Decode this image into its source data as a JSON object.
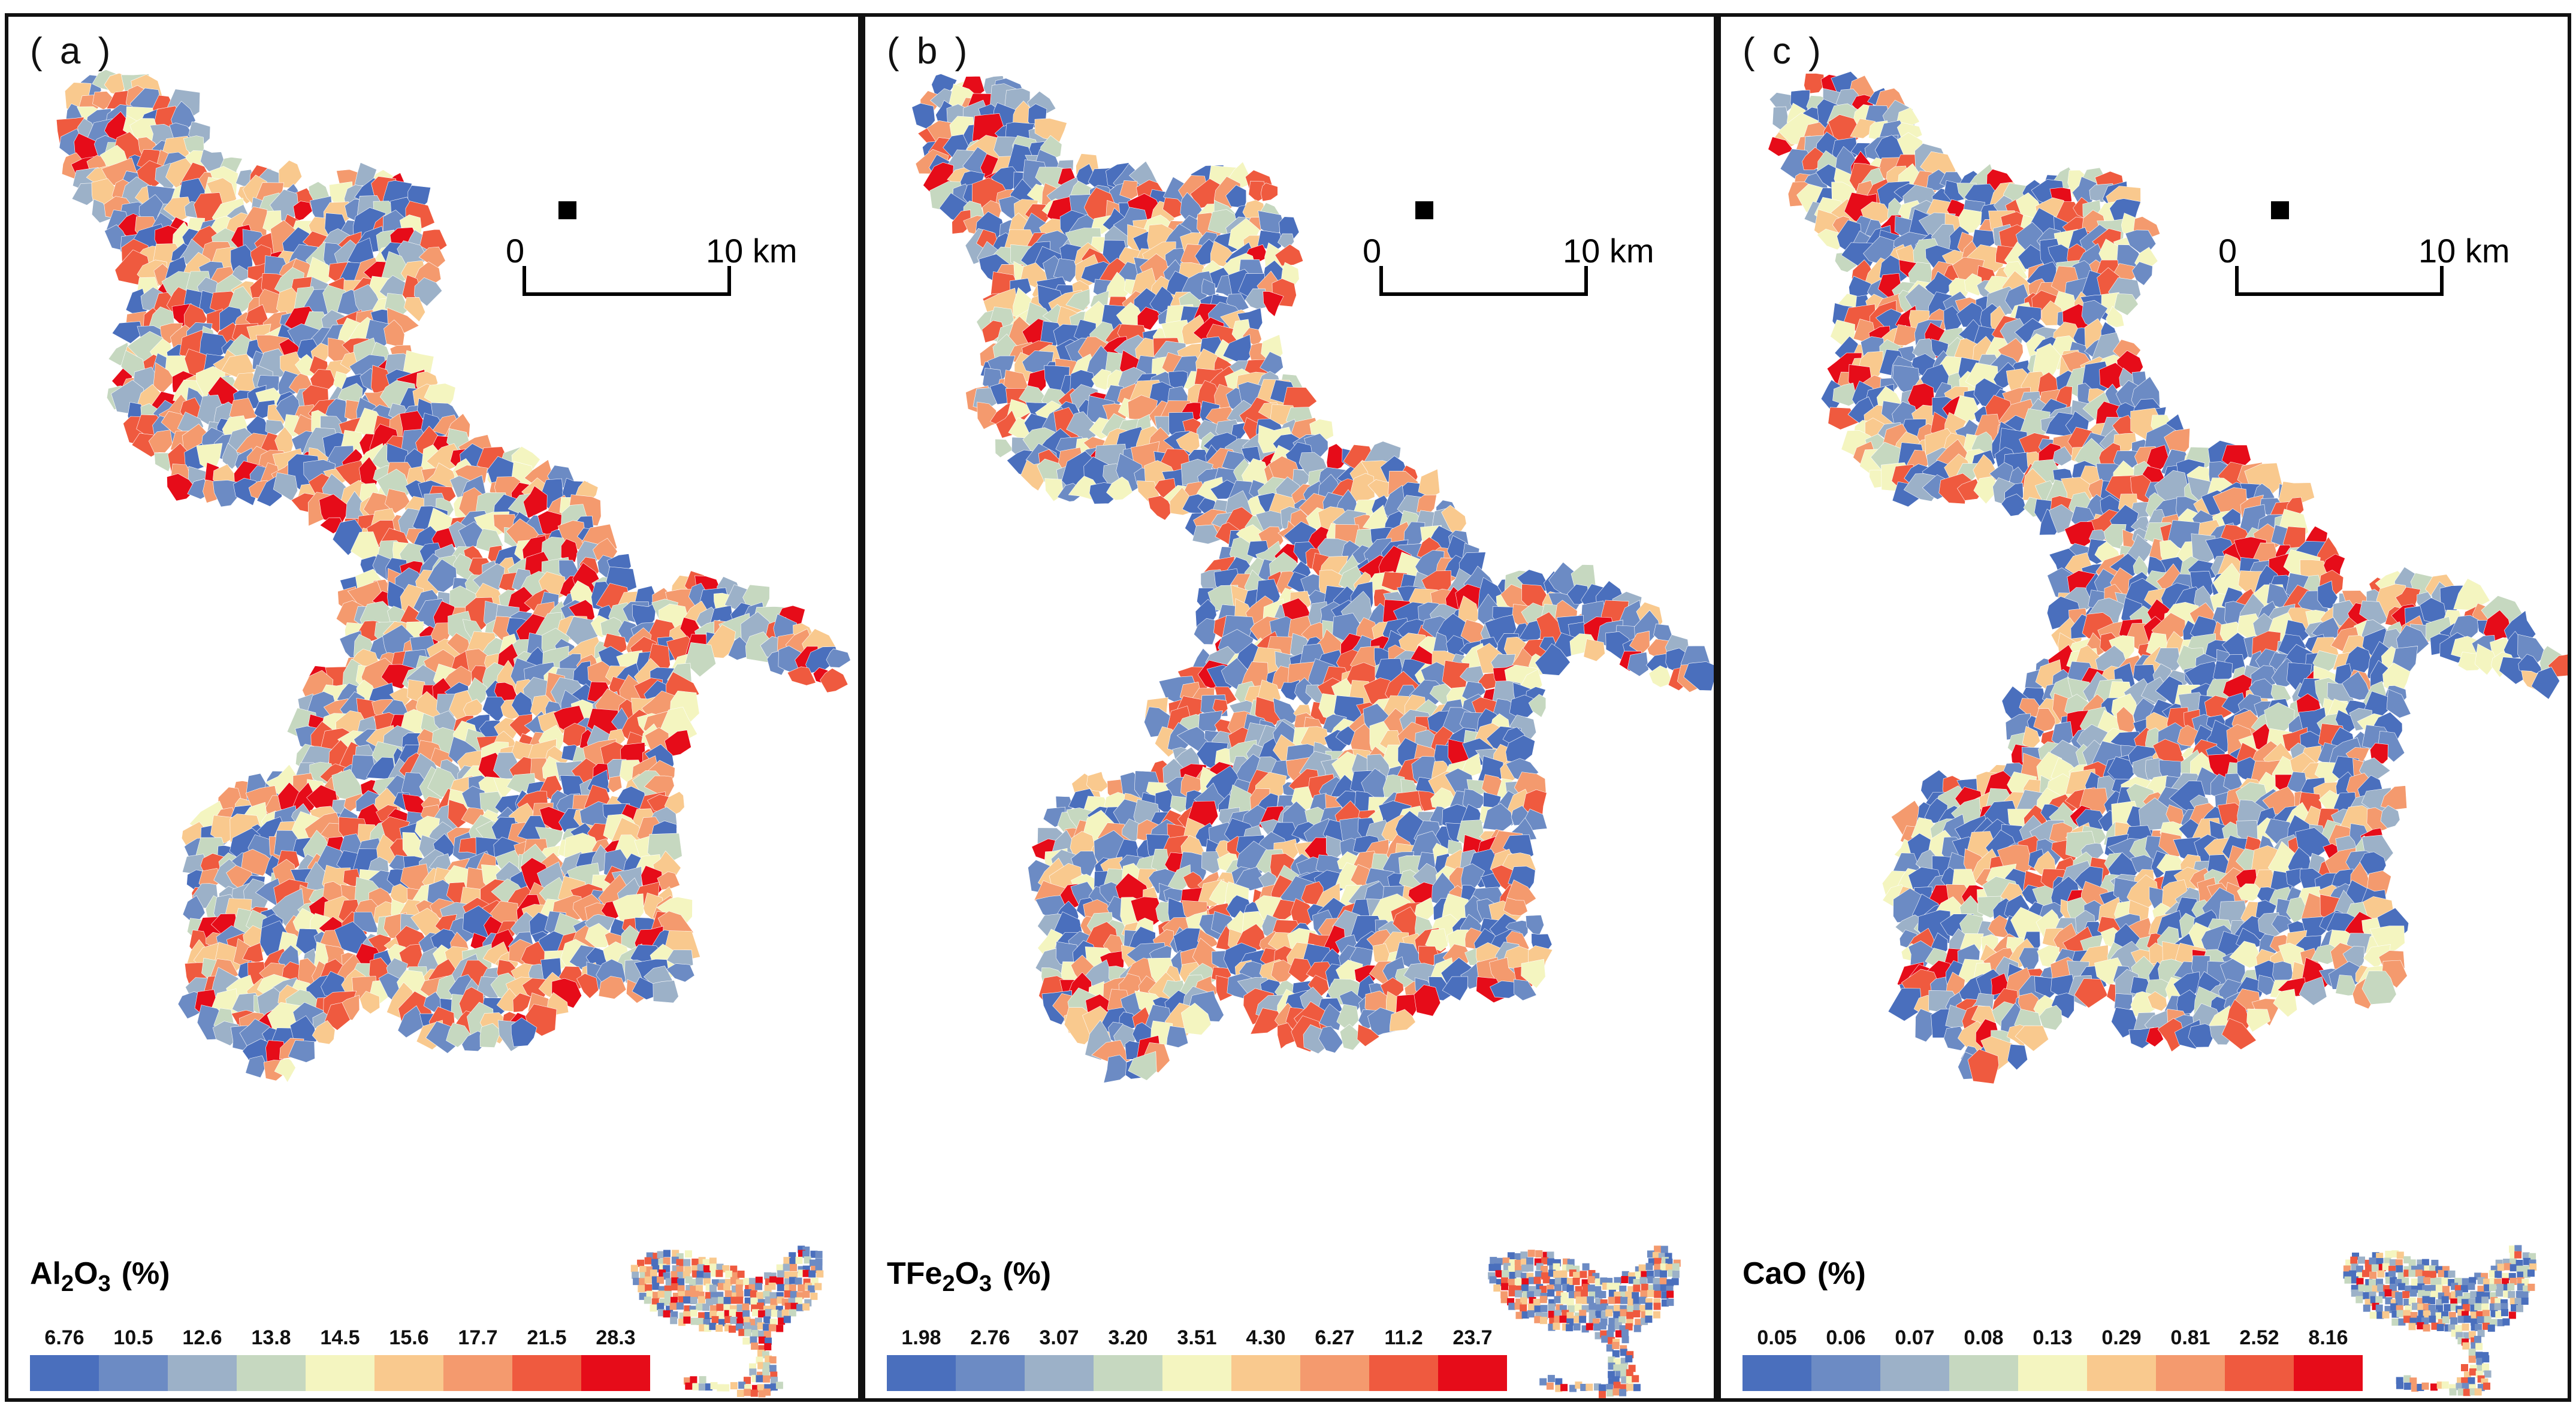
{
  "figure": {
    "panels": [
      {
        "label": "( a )",
        "legend": {
          "title_main": "Al",
          "title_sub1": "2",
          "title_mid": "O",
          "title_sub2": "3",
          "unit": "(%)"
        },
        "breaks": [
          "6.76",
          "10.5",
          "12.6",
          "13.8",
          "14.5",
          "15.6",
          "17.7",
          "21.5",
          "28.3"
        ],
        "scale": {
          "left": "0",
          "right": "10 km"
        }
      },
      {
        "label": "( b )",
        "legend": {
          "title_main": "TFe",
          "title_sub1": "2",
          "title_mid": "O",
          "title_sub2": "3",
          "unit": "(%)"
        },
        "breaks": [
          "1.98",
          "2.76",
          "3.07",
          "3.20",
          "3.51",
          "4.30",
          "6.27",
          "11.2",
          "23.7"
        ],
        "scale": {
          "left": "0",
          "right": "10 km"
        }
      },
      {
        "label": "( c )",
        "legend": {
          "title_main": "CaO",
          "title_sub1": "",
          "title_mid": "",
          "title_sub2": "",
          "unit": "(%)"
        },
        "breaks": [
          "0.05",
          "0.06",
          "0.07",
          "0.08",
          "0.13",
          "0.29",
          "0.81",
          "2.52",
          "8.16"
        ],
        "scale": {
          "left": "0",
          "right": "10 km"
        }
      }
    ]
  },
  "palette": [
    "#4a6fbd",
    "#6c8bc4",
    "#9cb1c8",
    "#c6d8c0",
    "#f4f5c0",
    "#f9c98e",
    "#f49a6e",
    "#ef5a3f",
    "#e60c19"
  ],
  "panel_weights": [
    [
      0.12,
      0.12,
      0.1,
      0.1,
      0.1,
      0.12,
      0.14,
      0.13,
      0.07
    ],
    [
      0.2,
      0.16,
      0.1,
      0.08,
      0.09,
      0.11,
      0.11,
      0.1,
      0.05
    ],
    [
      0.22,
      0.14,
      0.1,
      0.1,
      0.12,
      0.1,
      0.09,
      0.08,
      0.05
    ]
  ]
}
